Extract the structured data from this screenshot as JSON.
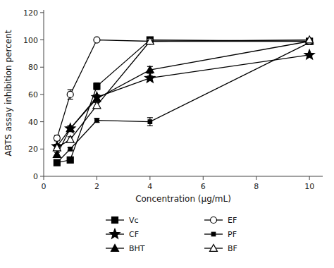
{
  "chart_data": {
    "type": "line",
    "xlabel": "Concentration (μg/mL)",
    "ylabel": "ABTS assay inhibition percent",
    "x": [
      0.5,
      1,
      2,
      4,
      10
    ],
    "xlim": [
      0,
      10.5
    ],
    "ylim": [
      0,
      122
    ],
    "xticks": [
      0,
      2,
      4,
      6,
      8,
      10
    ],
    "yticks": [
      0,
      20,
      40,
      60,
      80,
      100,
      120
    ],
    "grid": false,
    "legend": "bottom",
    "series": [
      {
        "name": "Vc",
        "color": "#000000",
        "marker": "square",
        "values": [
          10,
          12,
          66,
          100,
          99
        ],
        "errors": [
          2,
          1.5,
          2.5,
          1,
          0.5
        ]
      },
      {
        "name": "BHT",
        "color": "#000000",
        "marker": "triangle",
        "values": [
          16,
          35,
          57,
          78,
          99
        ],
        "errors": [
          1.5,
          2,
          2,
          2.5,
          0.5
        ]
      },
      {
        "name": "PF",
        "color": "#000000",
        "marker": "small-square",
        "values": [
          10,
          20,
          41,
          40,
          98
        ],
        "errors": [
          1,
          1,
          1.5,
          3,
          0.5
        ]
      },
      {
        "name": "CF",
        "color": "#000000",
        "marker": "star",
        "values": [
          22,
          35,
          58,
          72,
          89
        ],
        "errors": [
          1.5,
          2,
          2,
          1.5,
          1
        ]
      },
      {
        "name": "EF",
        "color": "#000000",
        "marker": "open-circle",
        "values": [
          28,
          60,
          100,
          99,
          99
        ],
        "errors": [
          2,
          3.5,
          0.5,
          0.5,
          0.5
        ]
      },
      {
        "name": "BF",
        "color": "#000000",
        "marker": "open-triangle",
        "values": [
          21,
          27,
          52,
          99,
          100
        ],
        "errors": [
          1.5,
          2,
          2,
          0.5,
          0.5
        ]
      }
    ]
  }
}
